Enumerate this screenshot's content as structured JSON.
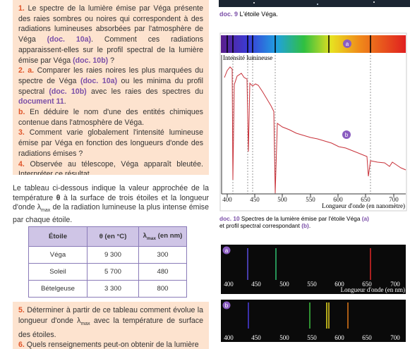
{
  "box1": {
    "items": [
      {
        "number": "1.",
        "parts": [
          "Le spectre de la lumière émise par Véga présente des raies sombres ou noires qui correspondent à des radiations lumineuses absorbées par l'atmosphère de Véga ",
          "(doc. 10a)",
          ". Comment ces radiations apparaissent-elles sur le profil spectral de la lumière émise par Véga ",
          "(doc. 10b)",
          " ?"
        ]
      },
      {
        "number": "2. a.",
        "parts": [
          "Comparer les raies noires les plus marquées du spectre de Véga ",
          "(doc. 10a)",
          " ou les minima du profil spectral ",
          "(doc. 10b)",
          " avec les raies des spectres du ",
          "document 11",
          "."
        ]
      },
      {
        "number": "b.",
        "parts": [
          "En déduire le nom d'une des entités chimiques contenue dans l'atmosphère de Véga."
        ]
      },
      {
        "number": "3.",
        "parts": [
          "Comment varie globalement l'intensité lumineuse émise par Véga en fonction des longueurs d'onde des radiations émises ?"
        ]
      },
      {
        "number": "4.",
        "parts": [
          "Observée au télescope, Véga apparaît bleutée. Interpréter ce résultat."
        ]
      }
    ]
  },
  "intro": {
    "parts": [
      "Le tableau ci-dessous indique la valeur approchée de la température ",
      "θ",
      " à la surface de trois étoiles et la longueur d'onde λ",
      "max",
      " de la radiation lumineuse la plus intense émise par chaque étoile."
    ]
  },
  "table": {
    "header": [
      "Étoile",
      "θ (en °C)",
      [
        "λ",
        "max",
        " (en nm)"
      ]
    ],
    "rows": [
      [
        "Véga",
        "9 300",
        "300"
      ],
      [
        "Soleil",
        "5 700",
        "480"
      ],
      [
        "Bételgeuse",
        "3 300",
        "800"
      ]
    ]
  },
  "box2": {
    "items": [
      {
        "number": "5.",
        "parts": [
          "Déterminer à partir de ce tableau comment évolue la longueur d'onde λ",
          "max",
          " avec la température de surface des étoiles."
        ]
      },
      {
        "number": "6.",
        "parts": [
          "Quels renseignements peut-on obtenir de la lumière"
        ]
      }
    ]
  },
  "doc9": {
    "label": "doc. 9",
    "caption": "L'étoile Véga."
  },
  "doc10": {
    "label": "doc. 10",
    "caption": [
      "Spectres de la lumière émise par l'étoile Véga ",
      "(a)",
      "et profil spectral correspondant ",
      "(b)",
      "."
    ]
  },
  "profile": {
    "badge_a": "a",
    "badge_b": "b",
    "y_label": "Intensité lumineuse",
    "x_label": "Longueur d'onde (en nanomètre)",
    "x_ticks": [
      "400",
      "450",
      "500",
      "550",
      "600",
      "650",
      "700"
    ]
  },
  "spectrum_a": {
    "badge": "a",
    "x_ticks": [
      "400",
      "450",
      "500",
      "550",
      "600",
      "650",
      "700"
    ],
    "x_label": "Longueur d'onde (en nm)"
  },
  "spectrum_b": {
    "badge": "b",
    "x_ticks": [
      "400",
      "450",
      "500",
      "550",
      "600",
      "650",
      "700"
    ]
  }
}
